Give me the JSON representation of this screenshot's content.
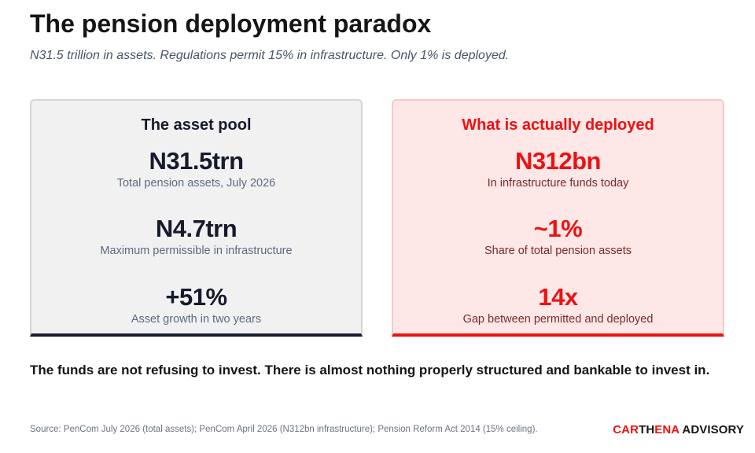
{
  "header": {
    "title": "The pension deployment paradox",
    "subtitle": "N31.5 trillion in assets. Regulations permit 15% in infrastructure. Only 1% is deployed."
  },
  "cards": {
    "asset_pool": {
      "heading": "The asset pool",
      "metrics": [
        {
          "value": "N31.5trn",
          "label": "Total pension assets, July 2026"
        },
        {
          "value": "N4.7trn",
          "label": "Maximum permissible in infrastructure"
        },
        {
          "value": "+51%",
          "label": "Asset growth in two years"
        }
      ]
    },
    "deployed": {
      "heading": "What is actually deployed",
      "metrics": [
        {
          "value": "N312bn",
          "label": "In infrastructure funds today"
        },
        {
          "value": "~1%",
          "label": "Share of total pension assets"
        },
        {
          "value": "14x",
          "label": "Gap between permitted and deployed"
        }
      ]
    }
  },
  "conclusion": "The funds are not refusing to invest. There is almost nothing properly structured and bankable to invest in.",
  "footer": {
    "source": "Source: PenCom July 2026 (total assets); PenCom April 2026 (N312bn infrastructure); Pension Reform Act 2014 (15% ceiling).",
    "brand": {
      "part1": "CAR",
      "part2": "TH",
      "part3": "ENA",
      "part4": " ADVISORY"
    }
  },
  "colors": {
    "accent_red": "#ee1111",
    "dark_navy": "#161a2c",
    "left_card_bg": "#f1f1f1",
    "right_card_bg": "#fde7e7"
  }
}
